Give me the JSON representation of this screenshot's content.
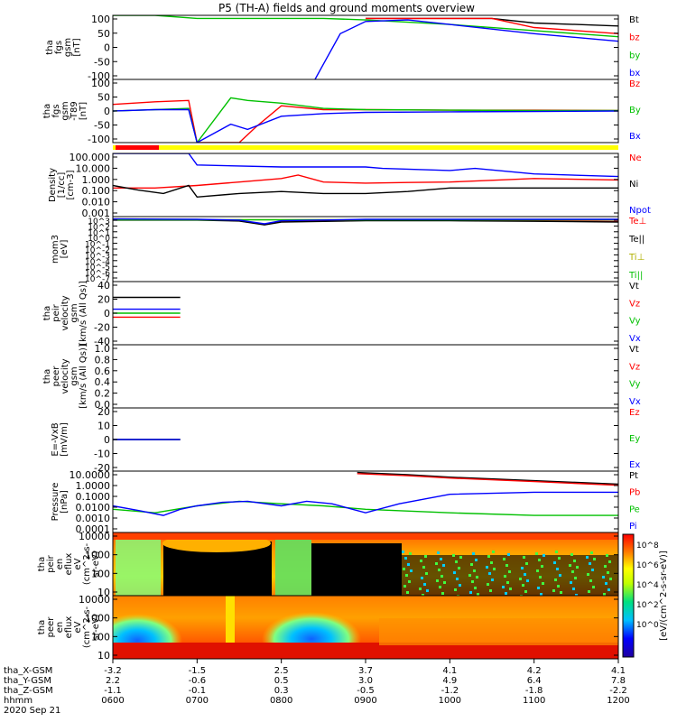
{
  "title": "P5 (TH-A) fields and ground moments overview",
  "footer": {
    "row_labels": [
      "tha_X-GSM",
      "tha_Y-GSM",
      "tha_Z-GSM",
      "hhmm",
      "2020 Sep 21"
    ],
    "ticks": [
      {
        "x": "-3.2",
        "y": "2.2",
        "z": "-1.1",
        "time": "0600"
      },
      {
        "x": "-1.5",
        "y": "-0.6",
        "z": "-0.1",
        "time": "0700"
      },
      {
        "x": "2.5",
        "y": "0.5",
        "z": "0.3",
        "time": "0800"
      },
      {
        "x": "3.7",
        "y": "3.0",
        "z": "-0.5",
        "time": "0900"
      },
      {
        "x": "4.1",
        "y": "4.9",
        "z": "-1.2",
        "time": "1000"
      },
      {
        "x": "4.2",
        "y": "6.4",
        "z": "-1.8",
        "time": "1100"
      },
      {
        "x": "4.1",
        "y": "7.8",
        "z": "-2.2",
        "time": "1200"
      }
    ]
  },
  "colorbar": {
    "ticks": [
      "10^8",
      "10^6",
      "10^4",
      "10^2",
      "10^0"
    ],
    "label": "[eV/(cm^2-s-sr-eV)]"
  },
  "chart_data": [
    {
      "type": "line",
      "ylabel": [
        "tha",
        "fgs",
        "gsm",
        "[nT]"
      ],
      "yticks": [
        "100",
        "50",
        "0",
        "-50",
        "-100"
      ],
      "ylim": [
        -100,
        110
      ],
      "xlim": [
        "06:00",
        "12:00"
      ],
      "series": [
        {
          "name": "Bt",
          "color": "#000000",
          "x": [
            3.0,
            3.5,
            4.0,
            4.5,
            5.0,
            5.5,
            6.0
          ],
          "values": [
            100,
            100,
            100,
            100,
            85,
            80,
            75
          ]
        },
        {
          "name": "bz",
          "color": "#ff0000",
          "x": [
            3.0,
            3.5,
            4.0,
            4.5,
            5.0,
            5.5,
            6.0
          ],
          "values": [
            100,
            100,
            100,
            100,
            70,
            60,
            50
          ]
        },
        {
          "name": "by",
          "color": "#00c000",
          "x": [
            0.0,
            0.5,
            1.0,
            1.5,
            2.0,
            2.5,
            3.0,
            4.0,
            5.0,
            6.0
          ],
          "values": [
            110,
            110,
            100,
            100,
            100,
            100,
            95,
            80,
            60,
            40
          ]
        },
        {
          "name": "bx",
          "color": "#0000ff",
          "x": [
            2.4,
            2.5,
            2.7,
            3.0,
            3.5,
            4.0,
            5.0,
            6.0
          ],
          "values": [
            -100,
            -50,
            50,
            90,
            95,
            80,
            50,
            25
          ]
        }
      ]
    },
    {
      "type": "line",
      "ylabel": [
        "tha",
        "fgs",
        "gsm",
        "-T89",
        "[nT]"
      ],
      "yticks": [
        "100",
        "50",
        "0",
        "-50",
        "-100"
      ],
      "ylim": [
        -120,
        120
      ],
      "series": [
        {
          "name": "Bz",
          "color": "#ff0000",
          "x": [
            0.0,
            0.5,
            0.9,
            1.0,
            1.5,
            1.7,
            2.0,
            2.5,
            3.0,
            4.0,
            5.0,
            6.0
          ],
          "values": [
            25,
            35,
            40,
            -120,
            -120,
            -60,
            20,
            5,
            5,
            3,
            3,
            2
          ]
        },
        {
          "name": "By",
          "color": "#00c000",
          "x": [
            0.0,
            0.5,
            0.9,
            1.0,
            1.4,
            1.6,
            2.0,
            2.5,
            3.0,
            4.0,
            5.0,
            6.0
          ],
          "values": [
            0,
            5,
            10,
            -120,
            50,
            40,
            30,
            10,
            5,
            3,
            2,
            2
          ]
        },
        {
          "name": "Bx",
          "color": "#0000ff",
          "x": [
            0.0,
            0.5,
            0.9,
            1.0,
            1.4,
            1.6,
            2.0,
            2.5,
            3.0,
            4.0,
            5.0,
            6.0
          ],
          "values": [
            0,
            5,
            5,
            -120,
            -50,
            -70,
            -20,
            -10,
            -5,
            -3,
            -2,
            0
          ]
        }
      ]
    },
    {
      "type": "line",
      "ylabel": [
        "Density",
        "[1/cc]",
        "[cm-3]"
      ],
      "yticks": [
        "100.000",
        "10.000",
        "1.000",
        "0.100",
        "0.010",
        "0.001"
      ],
      "ylim": [
        0.001,
        300
      ],
      "scale": "log",
      "series": [
        {
          "name": "Ne",
          "color": "#ff0000",
          "x": [
            0.0,
            0.5,
            1.0,
            1.5,
            2.0,
            2.2,
            2.5,
            3.0,
            3.5,
            4.0,
            5.0,
            6.0
          ],
          "values": [
            0.3,
            0.3,
            0.5,
            1.0,
            2.0,
            4.0,
            1.0,
            0.8,
            0.9,
            1.0,
            2.0,
            1.5
          ]
        },
        {
          "name": "Ni",
          "color": "#000000",
          "x": [
            0.0,
            0.3,
            0.6,
            0.9,
            1.0,
            1.5,
            2.0,
            2.5,
            3.0,
            3.5,
            4.0,
            5.0,
            6.0
          ],
          "values": [
            0.5,
            0.2,
            0.1,
            0.5,
            0.05,
            0.1,
            0.15,
            0.1,
            0.1,
            0.15,
            0.3,
            0.3,
            0.3
          ]
        },
        {
          "name": "Npot",
          "color": "#0000ff",
          "x": [
            0.0,
            0.9,
            1.0,
            2.0,
            3.0,
            3.2,
            4.0,
            4.3,
            5.0,
            6.0
          ],
          "values": [
            300,
            300,
            30,
            20,
            20,
            15,
            10,
            15,
            5,
            3
          ]
        }
      ]
    },
    {
      "type": "line",
      "ylabel": [
        "mom3",
        "[eV]"
      ],
      "yticks": [
        "10^3",
        "10^2",
        "10^1",
        "10^0",
        "10^-1",
        "10^-2",
        "10^-3",
        "10^-4",
        "10^-5",
        "10^-6",
        "10^-7"
      ],
      "ylim": [
        1e-07,
        10000
      ],
      "scale": "log",
      "series": [
        {
          "name": "Te⊥",
          "color": "#ff0000",
          "x": [
            0.0,
            1.0,
            1.5,
            1.8,
            2.0,
            3.0,
            4.0,
            5.0,
            6.0
          ],
          "values": [
            3000,
            3000,
            2000,
            500,
            1500,
            2500,
            2500,
            2000,
            1500
          ]
        },
        {
          "name": "Te||",
          "color": "#000000",
          "x": [
            0.0,
            1.0,
            1.5,
            1.8,
            2.0,
            3.0,
            4.0,
            5.0,
            6.0
          ],
          "values": [
            2500,
            2500,
            1800,
            400,
            1200,
            2000,
            2000,
            1600,
            1200
          ]
        },
        {
          "name": "Ti⊥",
          "color": "#d0d000",
          "x": [
            0.0,
            6.0
          ],
          "values": [
            3000,
            3000
          ]
        },
        {
          "name": "Ti||",
          "color": "#00c000",
          "x": [
            0.0,
            6.0
          ],
          "values": [
            2800,
            2800
          ]
        }
      ],
      "extra_series": [
        {
          "name": "",
          "color": "#0000ff",
          "x": [
            0.0,
            1.0,
            1.5,
            1.8,
            2.0,
            3.0,
            6.0
          ],
          "values": [
            4000,
            3500,
            2500,
            600,
            2000,
            3500,
            3500
          ]
        }
      ]
    },
    {
      "type": "line",
      "ylabel": [
        "tha",
        "peir",
        "velocity",
        "gsm",
        "[km/s (All Qs)]"
      ],
      "yticks": [
        "40",
        "20",
        "0",
        "-20",
        "-40"
      ],
      "ylim": [
        -40,
        40
      ],
      "series": [
        {
          "name": "Vt",
          "color": "#000000",
          "x": [
            0.0,
            0.8
          ],
          "values": [
            20,
            20
          ]
        },
        {
          "name": "Vz",
          "color": "#ff0000",
          "x": [
            0.0,
            0.8
          ],
          "values": [
            -5,
            -5
          ]
        },
        {
          "name": "Vy",
          "color": "#00c000",
          "x": [
            0.0,
            0.8
          ],
          "values": [
            0,
            0
          ]
        },
        {
          "name": "Vx",
          "color": "#0000ff",
          "x": [
            0.0,
            0.8
          ],
          "values": [
            5,
            5
          ]
        }
      ]
    },
    {
      "type": "line",
      "ylabel": [
        "tha",
        "peer",
        "velocity",
        "gsm",
        "[km/s (All Qs)]"
      ],
      "yticks": [
        "1.0",
        "0.8",
        "0.6",
        "0.4",
        "0.2",
        "0.0"
      ],
      "ylim": [
        0,
        1
      ],
      "series": [
        {
          "name": "Vt",
          "color": "#000000",
          "x": [],
          "values": []
        },
        {
          "name": "Vz",
          "color": "#ff0000",
          "x": [],
          "values": []
        },
        {
          "name": "Vy",
          "color": "#00c000",
          "x": [],
          "values": []
        },
        {
          "name": "Vx",
          "color": "#0000ff",
          "x": [],
          "values": []
        }
      ]
    },
    {
      "type": "line",
      "ylabel": [
        "E=-VxB",
        "[mV/m]"
      ],
      "yticks": [
        "20",
        "10",
        "0",
        "-10",
        "-20"
      ],
      "ylim": [
        -20,
        20
      ],
      "series": [
        {
          "name": "Ez",
          "color": "#ff0000",
          "x": [
            0.0,
            0.8
          ],
          "values": [
            0,
            0
          ]
        },
        {
          "name": "Ey",
          "color": "#00c000",
          "x": [
            0.0,
            0.8
          ],
          "values": [
            0,
            0
          ]
        },
        {
          "name": "Ex",
          "color": "#0000ff",
          "x": [
            0.0,
            0.8
          ],
          "values": [
            0,
            0
          ]
        }
      ]
    },
    {
      "type": "line",
      "ylabel": [
        "Pressure",
        "[nPa]"
      ],
      "yticks": [
        "10.0000",
        "1.0000",
        "0.1000",
        "0.0100",
        "0.0010",
        "0.0001"
      ],
      "ylim": [
        0.0001,
        20
      ],
      "scale": "log",
      "series": [
        {
          "name": "Pt",
          "color": "#000000",
          "x": [
            2.9,
            3.5,
            4.0,
            5.0,
            6.0
          ],
          "values": [
            15,
            10,
            6,
            3,
            1.5
          ]
        },
        {
          "name": "Pb",
          "color": "#ff0000",
          "x": [
            2.9,
            3.5,
            4.0,
            5.0,
            6.0
          ],
          "values": [
            12,
            8,
            5,
            2.5,
            1.2
          ]
        },
        {
          "name": "Pe",
          "color": "#00c000",
          "x": [
            0.0,
            0.5,
            1.0,
            1.5,
            2.0,
            2.5,
            3.0,
            4.0,
            5.0,
            6.0
          ],
          "values": [
            0.01,
            0.005,
            0.02,
            0.05,
            0.03,
            0.02,
            0.01,
            0.005,
            0.003,
            0.003
          ]
        },
        {
          "name": "Pi",
          "color": "#0000ff",
          "x": [
            0.0,
            0.3,
            0.6,
            0.8,
            1.0,
            1.3,
            1.6,
            2.0,
            2.3,
            2.6,
            3.0,
            3.4,
            4.0,
            5.0,
            6.0
          ],
          "values": [
            0.02,
            0.008,
            0.003,
            0.01,
            0.02,
            0.04,
            0.05,
            0.02,
            0.05,
            0.03,
            0.005,
            0.03,
            0.2,
            0.3,
            0.3
          ]
        }
      ]
    },
    {
      "type": "heatmap",
      "ylabel": [
        "tha",
        "peir",
        "en",
        "eflux",
        "eV",
        "(cm^2-s-",
        "sr-eV)"
      ],
      "yticks": [
        "10000",
        "1000",
        "100",
        "10"
      ],
      "ylim": [
        5,
        30000
      ],
      "scale": "log"
    },
    {
      "type": "heatmap",
      "ylabel": [
        "tha",
        "peer",
        "en",
        "eflux",
        "eV",
        "(cm^2-s-",
        "sr-eV)"
      ],
      "yticks": [
        "10000",
        "1000",
        "100",
        "10"
      ],
      "ylim": [
        5,
        30000
      ],
      "scale": "log"
    }
  ],
  "colors": {
    "status_red": "#ff0000",
    "status_yellow": "#ffff00"
  }
}
